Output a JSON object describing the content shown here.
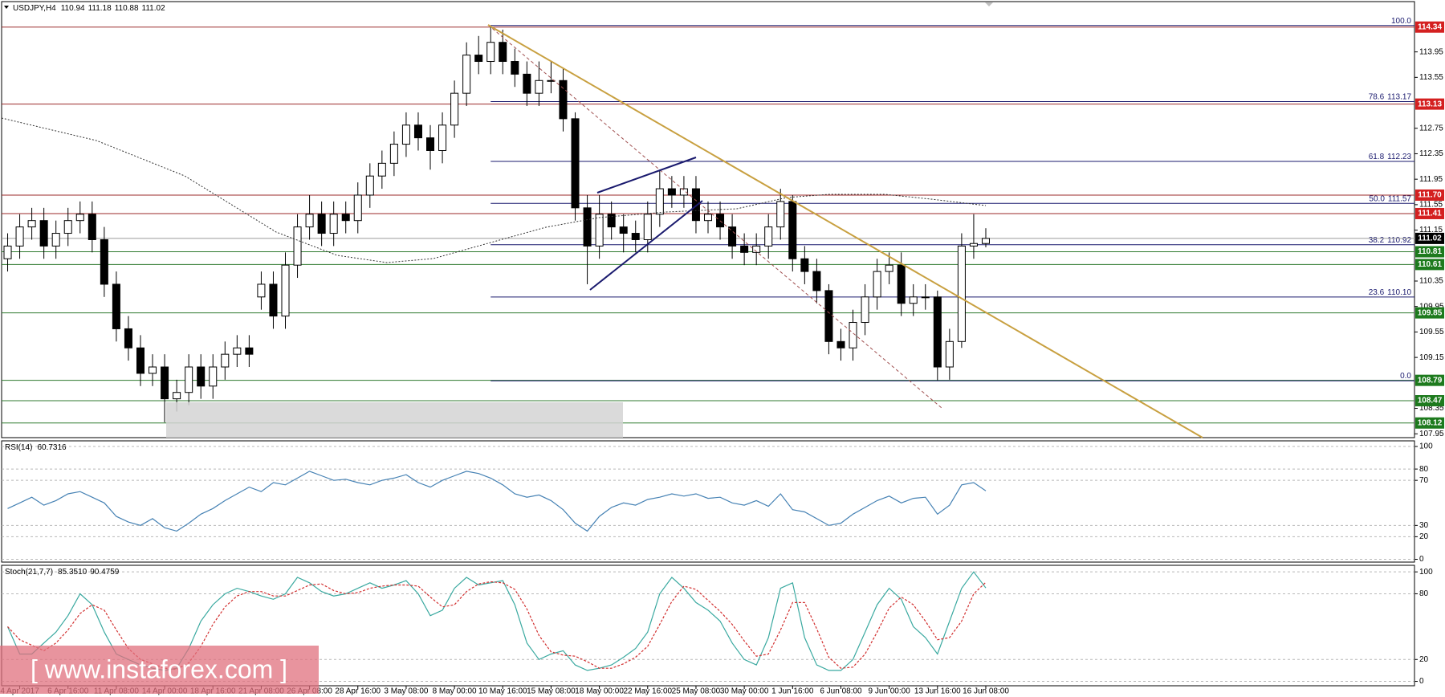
{
  "chart_data": [
    {
      "type": "candlestick",
      "title": "USDJPY,H4",
      "readout": [
        "110.94",
        "111.18",
        "110.88",
        "111.02"
      ],
      "xlim": [
        0,
        117
      ],
      "ylim": [
        107.89,
        114.74
      ],
      "yticks": [
        113.95,
        113.55,
        112.75,
        112.35,
        111.95,
        111.55,
        111.15,
        110.35,
        109.95,
        109.55,
        109.15,
        108.35,
        107.95
      ],
      "up_color": "#ffffff",
      "down_color": "#000000",
      "outline": "#000000",
      "open": [
        110.7,
        110.9,
        111.2,
        111.3,
        110.9,
        111.1,
        111.3,
        111.4,
        111.0,
        110.3,
        109.6,
        109.3,
        108.9,
        109.0,
        108.5,
        108.6,
        109.0,
        108.7,
        109.0,
        109.2,
        109.3,
        110.1,
        110.3,
        109.8,
        110.6,
        111.2,
        111.4,
        111.1,
        111.4,
        111.3,
        111.7,
        112.0,
        112.2,
        112.5,
        112.8,
        112.6,
        112.4,
        112.8,
        113.3,
        113.9,
        113.8,
        114.1,
        113.8,
        113.6,
        113.3,
        113.5,
        113.5,
        112.9,
        111.5,
        110.9,
        111.4,
        111.2,
        111.1,
        111.0,
        111.4,
        111.8,
        111.7,
        111.8,
        111.3,
        111.4,
        111.2,
        110.9,
        110.8,
        110.9,
        111.2,
        111.6,
        110.7,
        110.5,
        110.2,
        109.4,
        109.3,
        109.7,
        110.1,
        110.5,
        110.6,
        110.0,
        110.1,
        110.1,
        109.0,
        109.4,
        110.9,
        110.94
      ],
      "high": [
        111.1,
        111.4,
        111.5,
        111.5,
        111.3,
        111.5,
        111.6,
        111.6,
        111.2,
        110.5,
        109.8,
        109.5,
        109.2,
        109.2,
        108.8,
        109.2,
        109.2,
        109.2,
        109.4,
        109.5,
        109.5,
        110.5,
        110.5,
        110.8,
        111.4,
        111.7,
        111.6,
        111.6,
        111.6,
        111.9,
        112.2,
        112.4,
        112.7,
        113.0,
        113.0,
        112.8,
        113.0,
        113.5,
        114.1,
        114.2,
        114.34,
        114.3,
        114.0,
        113.8,
        113.8,
        113.8,
        113.7,
        113.0,
        111.7,
        111.7,
        111.6,
        111.4,
        111.3,
        111.6,
        112.1,
        112.0,
        112.0,
        112.0,
        111.6,
        111.6,
        111.4,
        111.1,
        111.1,
        111.4,
        111.8,
        111.7,
        110.9,
        110.7,
        110.3,
        109.6,
        109.9,
        110.3,
        110.7,
        110.8,
        110.8,
        110.3,
        110.3,
        110.2,
        109.6,
        111.1,
        111.4,
        111.18
      ],
      "low": [
        110.5,
        110.7,
        111.0,
        110.7,
        110.7,
        110.9,
        111.1,
        110.8,
        110.1,
        109.4,
        109.1,
        108.7,
        108.7,
        108.13,
        108.3,
        108.4,
        108.5,
        108.5,
        108.8,
        109.0,
        109.0,
        109.9,
        109.6,
        109.6,
        110.4,
        111.0,
        110.9,
        110.9,
        111.1,
        111.1,
        111.5,
        111.8,
        112.0,
        112.3,
        112.4,
        112.1,
        112.2,
        112.6,
        113.1,
        113.6,
        113.6,
        113.6,
        113.4,
        113.1,
        113.1,
        113.3,
        112.7,
        111.3,
        110.3,
        110.7,
        111.0,
        110.8,
        110.8,
        110.8,
        111.2,
        111.5,
        111.5,
        111.1,
        111.1,
        111.0,
        110.7,
        110.6,
        110.6,
        110.7,
        111.0,
        110.5,
        110.3,
        110.0,
        109.2,
        109.1,
        109.1,
        109.5,
        109.9,
        110.3,
        109.8,
        109.8,
        109.9,
        108.79,
        108.8,
        109.3,
        110.7,
        110.88
      ],
      "close": [
        110.9,
        111.2,
        111.3,
        110.9,
        111.1,
        111.3,
        111.4,
        111.0,
        110.3,
        109.6,
        109.3,
        108.9,
        109.0,
        108.5,
        108.6,
        109.0,
        108.7,
        109.0,
        109.2,
        109.3,
        109.2,
        110.3,
        109.8,
        110.6,
        111.2,
        111.4,
        111.1,
        111.4,
        111.3,
        111.7,
        112.0,
        112.2,
        112.5,
        112.8,
        112.6,
        112.4,
        112.8,
        113.3,
        113.9,
        113.8,
        114.1,
        113.8,
        113.6,
        113.3,
        113.5,
        113.5,
        112.9,
        111.5,
        110.9,
        111.4,
        111.2,
        111.1,
        111.0,
        111.4,
        111.8,
        111.7,
        111.8,
        111.3,
        111.4,
        111.2,
        110.9,
        110.8,
        110.9,
        111.2,
        111.6,
        110.7,
        110.5,
        110.2,
        109.4,
        109.3,
        109.7,
        110.1,
        110.5,
        110.6,
        110.0,
        110.1,
        110.1,
        109.0,
        109.4,
        110.9,
        110.94,
        111.02
      ],
      "resistance": {
        "color": "#d42020",
        "line_color": "#9b2a2a",
        "values": [
          114.34,
          113.13,
          {
            "value": 111.7,
            "label": "111.70"
          },
          111.41
        ]
      },
      "support": {
        "color": "#1d7a1d",
        "line_color": "#2f7a2f",
        "values": [
          110.81,
          110.61,
          109.85,
          108.79,
          108.47,
          108.12
        ]
      },
      "current_color": "#000000",
      "fib": {
        "color": "#1a1a6e",
        "levels": [
          {
            "ratio": {
              "value": 100,
              "label": "100.0"
            },
            "price": null
          },
          {
            "ratio": 78.6,
            "price": 113.17
          },
          {
            "ratio": 61.8,
            "price": 112.23
          },
          {
            "ratio": {
              "value": 50,
              "label": "50.0"
            },
            "price": 111.57
          },
          {
            "ratio": 38.2,
            "price": 110.92
          },
          {
            "ratio": 23.6,
            "price": {
              "value": 110.1,
              "label": "110.10"
            }
          },
          {
            "ratio": {
              "value": 0,
              "label": "0.0"
            },
            "price": null
          }
        ]
      }
    },
    {
      "type": "line",
      "title": "RSI(14)",
      "readout": [
        "60.7316"
      ],
      "xlim": [
        0,
        117
      ],
      "ylim": [
        -2.5,
        105
      ],
      "yticks": [
        100,
        80,
        70,
        30,
        20,
        0
      ],
      "grid": true,
      "series": [
        {
          "color": "#4682b4",
          "values": [
            45,
            50,
            55,
            48,
            52,
            58,
            60,
            55,
            50,
            38,
            33,
            30,
            36,
            28,
            25,
            32,
            40,
            45,
            52,
            58,
            64,
            60,
            68,
            66,
            72,
            78,
            74,
            70,
            71,
            68,
            66,
            70,
            72,
            75,
            68,
            64,
            70,
            74,
            78,
            76,
            72,
            66,
            58,
            55,
            57,
            52,
            44,
            32,
            25,
            38,
            46,
            50,
            48,
            53,
            55,
            58,
            56,
            58,
            54,
            55,
            50,
            48,
            52,
            47,
            58,
            44,
            42,
            36,
            30,
            32,
            40,
            46,
            52,
            56,
            50,
            54,
            55,
            40,
            48,
            66,
            68,
            60.7316
          ]
        }
      ]
    },
    {
      "type": "line",
      "title": "Stoch(21,7,7)",
      "readout": [
        "85.3510",
        "90.4759"
      ],
      "xlim": [
        0,
        117
      ],
      "ylim": [
        -4,
        106
      ],
      "yticks": [
        100,
        80,
        20,
        0
      ],
      "grid": true,
      "series": [
        {
          "color": "#3aa9a0",
          "style": "solid",
          "values": [
            50,
            25,
            25,
            35,
            45,
            60,
            80,
            70,
            45,
            25,
            20,
            15,
            12,
            10,
            12,
            30,
            55,
            70,
            80,
            85,
            82,
            78,
            75,
            80,
            95,
            90,
            82,
            78,
            80,
            85,
            90,
            85,
            88,
            92,
            80,
            60,
            65,
            85,
            95,
            88,
            90,
            92,
            70,
            35,
            20,
            25,
            28,
            15,
            10,
            12,
            15,
            22,
            30,
            45,
            80,
            95,
            85,
            72,
            65,
            55,
            35,
            20,
            15,
            40,
            85,
            90,
            40,
            15,
            10,
            10,
            20,
            45,
            70,
            85,
            75,
            50,
            40,
            25,
            55,
            85,
            100,
            85.351
          ]
        },
        {
          "color": "#d23030",
          "style": "dashed",
          "values": [
            50,
            38,
            33,
            28,
            35,
            47,
            62,
            70,
            65,
            47,
            30,
            20,
            16,
            12,
            11,
            17,
            32,
            52,
            68,
            78,
            82,
            82,
            78,
            78,
            83,
            88,
            89,
            83,
            80,
            81,
            85,
            87,
            88,
            88,
            87,
            77,
            68,
            70,
            82,
            89,
            91,
            90,
            84,
            66,
            42,
            27,
            24,
            23,
            18,
            12,
            12,
            16,
            22,
            32,
            52,
            73,
            87,
            84,
            74,
            64,
            52,
            37,
            23,
            25,
            47,
            72,
            72,
            48,
            22,
            12,
            13,
            25,
            45,
            67,
            77,
            70,
            55,
            38,
            40,
            55,
            80,
            90.4759
          ]
        }
      ],
      "xticks": [
        {
          "value": 1.5,
          "label": "4 Apr 2017"
        },
        {
          "value": 5.5,
          "label": "6 Apr 16:00"
        },
        {
          "value": 9.5,
          "label": "11 Apr 08:00"
        },
        {
          "value": 13.5,
          "label": "14 Apr 00:00"
        },
        {
          "value": 17.5,
          "label": "18 Apr 16:00"
        },
        {
          "value": 21.5,
          "label": "21 Apr 08:00"
        },
        {
          "value": 25.5,
          "label": "26 Apr 08:00"
        },
        {
          "value": 29.5,
          "label": "28 Apr 16:00"
        },
        {
          "value": 33.5,
          "label": "3 May 08:00"
        },
        {
          "value": 37.5,
          "label": "8 May 00:00"
        },
        {
          "value": 41.5,
          "label": "10 May 16:00"
        },
        {
          "value": 45.5,
          "label": "15 May 08:00"
        },
        {
          "value": 49.5,
          "label": "18 May 00:00"
        },
        {
          "value": 53.5,
          "label": "22 May 16:00"
        },
        {
          "value": 57.5,
          "label": "25 May 08:00"
        },
        {
          "value": 61.5,
          "label": "30 May 00:00"
        },
        {
          "value": 65.5,
          "label": "1 Jun 16:00"
        },
        {
          "value": 69.5,
          "label": "6 Jun 08:00"
        },
        {
          "value": 73.5,
          "label": "9 Jun 00:00"
        },
        {
          "value": 77.5,
          "label": "13 Jun 16:00"
        },
        {
          "value": 81.5,
          "label": "16 Jun 08:00"
        }
      ]
    }
  ],
  "watermark": "[ www.instaforex.com ]"
}
